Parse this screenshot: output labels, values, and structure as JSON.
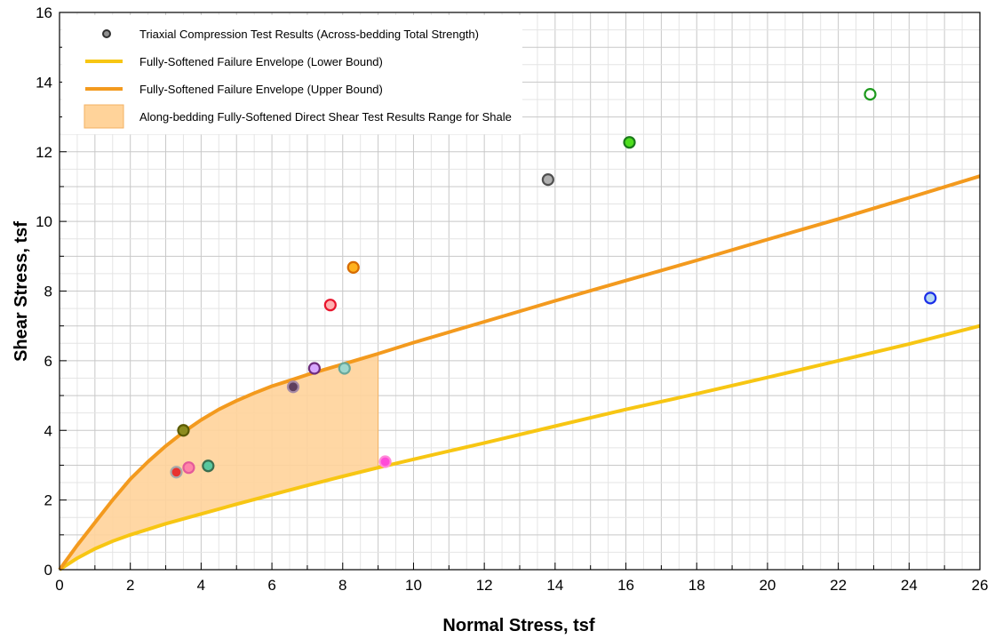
{
  "chart_data": {
    "type": "scatter",
    "title": "",
    "xlabel": "Normal Stress, tsf",
    "ylabel": "Shear Stress, tsf",
    "xlim": [
      0,
      26
    ],
    "ylim": [
      0,
      16
    ],
    "x_ticks": [
      "0",
      "2",
      "4",
      "6",
      "8",
      "10",
      "12",
      "14",
      "16",
      "18",
      "20",
      "22",
      "24",
      "26"
    ],
    "y_ticks": [
      "0",
      "2",
      "4",
      "6",
      "8",
      "10",
      "12",
      "14",
      "16"
    ],
    "grid": true,
    "legend_position": "top-left",
    "legend": [
      {
        "label": "Triaxial Compression Test Results (Across-bedding Total Strength)",
        "kind": "marker"
      },
      {
        "label": "Fully-Softened Failure Envelope (Lower Bound)",
        "kind": "line",
        "color": "#f7c613"
      },
      {
        "label": "Fully-Softened Failure Envelope (Upper Bound)",
        "kind": "line",
        "color": "#f39a1e"
      },
      {
        "label": "Along-bedding Fully-Softened Direct Shear Test Results Range for Shale",
        "kind": "area",
        "color": "#ffd39a"
      }
    ],
    "series": [
      {
        "name": "Fully-Softened Failure Envelope (Upper Bound)",
        "type": "line",
        "color": "#f39a1e",
        "points": [
          [
            0,
            0
          ],
          [
            0.5,
            0.7
          ],
          [
            1,
            1.35
          ],
          [
            1.5,
            2.0
          ],
          [
            2,
            2.6
          ],
          [
            2.5,
            3.1
          ],
          [
            3,
            3.55
          ],
          [
            3.5,
            3.95
          ],
          [
            4,
            4.3
          ],
          [
            4.5,
            4.6
          ],
          [
            5,
            4.85
          ],
          [
            5.5,
            5.07
          ],
          [
            6,
            5.27
          ],
          [
            6.5,
            5.43
          ],
          [
            7,
            5.6
          ],
          [
            7.5,
            5.75
          ],
          [
            8,
            5.9
          ],
          [
            8.5,
            6.05
          ],
          [
            9,
            6.2
          ],
          [
            10,
            6.52
          ],
          [
            12,
            7.12
          ],
          [
            14,
            7.72
          ],
          [
            16,
            8.3
          ],
          [
            18,
            8.88
          ],
          [
            20,
            9.48
          ],
          [
            22,
            10.07
          ],
          [
            24,
            10.68
          ],
          [
            26,
            11.3
          ]
        ]
      },
      {
        "name": "Fully-Softened Failure Envelope (Lower Bound)",
        "type": "line",
        "color": "#f7c613",
        "points": [
          [
            0,
            0
          ],
          [
            0.5,
            0.33
          ],
          [
            1,
            0.6
          ],
          [
            1.5,
            0.82
          ],
          [
            2,
            1.0
          ],
          [
            3,
            1.32
          ],
          [
            4,
            1.6
          ],
          [
            5,
            1.88
          ],
          [
            6,
            2.15
          ],
          [
            7,
            2.42
          ],
          [
            8,
            2.68
          ],
          [
            9,
            2.93
          ],
          [
            10,
            3.17
          ],
          [
            12,
            3.64
          ],
          [
            14,
            4.12
          ],
          [
            16,
            4.6
          ],
          [
            18,
            5.05
          ],
          [
            20,
            5.52
          ],
          [
            22,
            6.0
          ],
          [
            24,
            6.48
          ],
          [
            26,
            7.0
          ]
        ]
      },
      {
        "name": "Along-bedding Fully-Softened Direct Shear Test Results Range for Shale",
        "type": "area",
        "color": "#ffd39a",
        "x_range": [
          0,
          9
        ]
      },
      {
        "name": "Triaxial Compression Test Results (Across-bedding Total Strength)",
        "type": "scatter",
        "points": [
          {
            "x": 3.3,
            "y": 2.8,
            "fill": "#e8322f",
            "stroke": "#a9a9a9"
          },
          {
            "x": 3.65,
            "y": 2.93,
            "fill": "#ff85a8",
            "stroke": "#e45a9a"
          },
          {
            "x": 3.5,
            "y": 4.0,
            "fill": "#8c8c1e",
            "stroke": "#5a5a00"
          },
          {
            "x": 4.2,
            "y": 2.98,
            "fill": "#58c79e",
            "stroke": "#3a6e4f"
          },
          {
            "x": 6.6,
            "y": 5.25,
            "fill": "#5e3f5e",
            "stroke": "#a68aa6"
          },
          {
            "x": 7.2,
            "y": 5.78,
            "fill": "#d8a6ff",
            "stroke": "#6e2d7e"
          },
          {
            "x": 8.05,
            "y": 5.78,
            "fill": "#9fd8cd",
            "stroke": "#6aa89a"
          },
          {
            "x": 7.65,
            "y": 7.6,
            "fill": "#ffb0b0",
            "stroke": "#e8142c"
          },
          {
            "x": 8.3,
            "y": 8.68,
            "fill": "#ffb21e",
            "stroke": "#d66b00"
          },
          {
            "x": 9.2,
            "y": 3.1,
            "fill": "#ff4bd8",
            "stroke": "#ff8ad8"
          },
          {
            "x": 13.8,
            "y": 11.2,
            "fill": "#b0b0b0",
            "stroke": "#505050"
          },
          {
            "x": 16.1,
            "y": 12.27,
            "fill": "#4ede1e",
            "stroke": "#1a7a1a"
          },
          {
            "x": 22.9,
            "y": 13.65,
            "fill": "#ffffff",
            "stroke": "#1e9a1e"
          },
          {
            "x": 24.6,
            "y": 7.8,
            "fill": "#b8d8f0",
            "stroke": "#1a2ee8"
          }
        ]
      }
    ]
  }
}
